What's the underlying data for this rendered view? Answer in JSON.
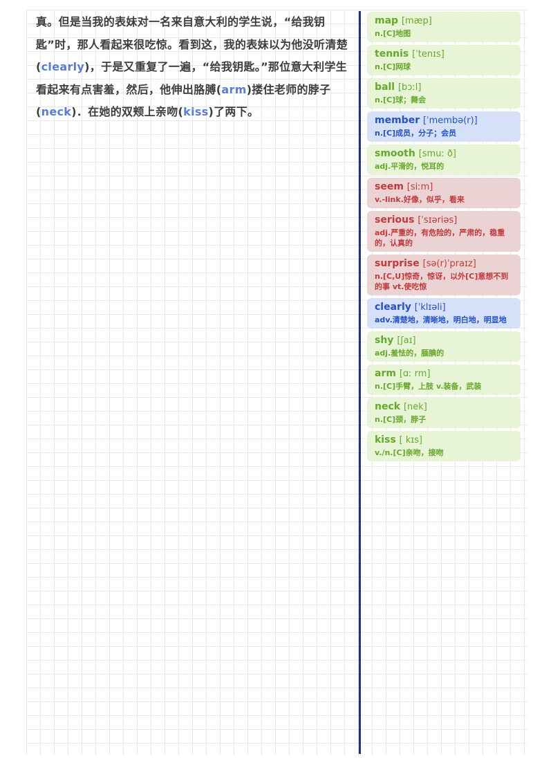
{
  "passage": [
    {
      "text": "真。但是当我的表妹对一名来自意大利的学生说，“给我钥匙”时，那人看起来很吃惊。看到这，我的表妹以为他没听清楚("
    },
    {
      "text": "clearly",
      "highlight": true
    },
    {
      "text": ")，于是又重复了一遍，“给我钥匙。”那位意大利学生看起来有点害羞，然后，他伸出胳膊("
    },
    {
      "text": "arm",
      "highlight": true
    },
    {
      "text": ")搂住老师的脖子("
    },
    {
      "text": "neck",
      "highlight": true
    },
    {
      "text": ")．在她的双颊上亲吻("
    },
    {
      "text": "kiss",
      "highlight": true
    },
    {
      "text": ")了两下。"
    }
  ],
  "vocab": [
    {
      "word": "map",
      "ipa": "[mæp]",
      "def": "n.[C]地图",
      "color": "green"
    },
    {
      "word": "tennis",
      "ipa": "[ˈtenɪs]",
      "def": "n.[C]网球",
      "color": "green"
    },
    {
      "word": "ball",
      "ipa": "[bɔːl]",
      "def": "n.[C]球；舞会",
      "color": "green"
    },
    {
      "word": "member",
      "ipa": "[ˈmembə(r)]",
      "def": "n.[C]成员，分子；会员",
      "color": "blue"
    },
    {
      "word": "smooth",
      "ipa": "[smuː ð]",
      "def": "adj.平滑的，悦耳的",
      "color": "green"
    },
    {
      "word": "seem",
      "ipa": "[siːm]",
      "def": "v.-link.好像，似乎，看来",
      "color": "red"
    },
    {
      "word": "serious",
      "ipa": "[ˈsɪəriəs]",
      "def": "adj.严重的，有危险的，严肃的，稳重的，认真的",
      "color": "red"
    },
    {
      "word": "surprise",
      "ipa": "[sə(r)ˈpraɪz]",
      "def": "n.[C,U]惊奇，惊讶，以外[C]意想不到的事 vt.使吃惊",
      "color": "red"
    },
    {
      "word": "clearly",
      "ipa": "[ˈklɪəli]",
      "def": "adv.清楚地，清晰地，明白地，明显地",
      "color": "blue"
    },
    {
      "word": "shy",
      "ipa": "[ʃaɪ]",
      "def": "adj.羞怯的，腼腆的",
      "color": "green"
    },
    {
      "word": "arm",
      "ipa": "[ɑː rm]",
      "def": "n.[C]手臂，上肢 v.装备，武装",
      "color": "green"
    },
    {
      "word": "neck",
      "ipa": "[nek]",
      "def": "n.[C]颈，脖子",
      "color": "green"
    },
    {
      "word": "kiss",
      "ipa": "[ kɪs]",
      "def": "v./n.[C]亲吻，接吻",
      "color": "green"
    }
  ]
}
